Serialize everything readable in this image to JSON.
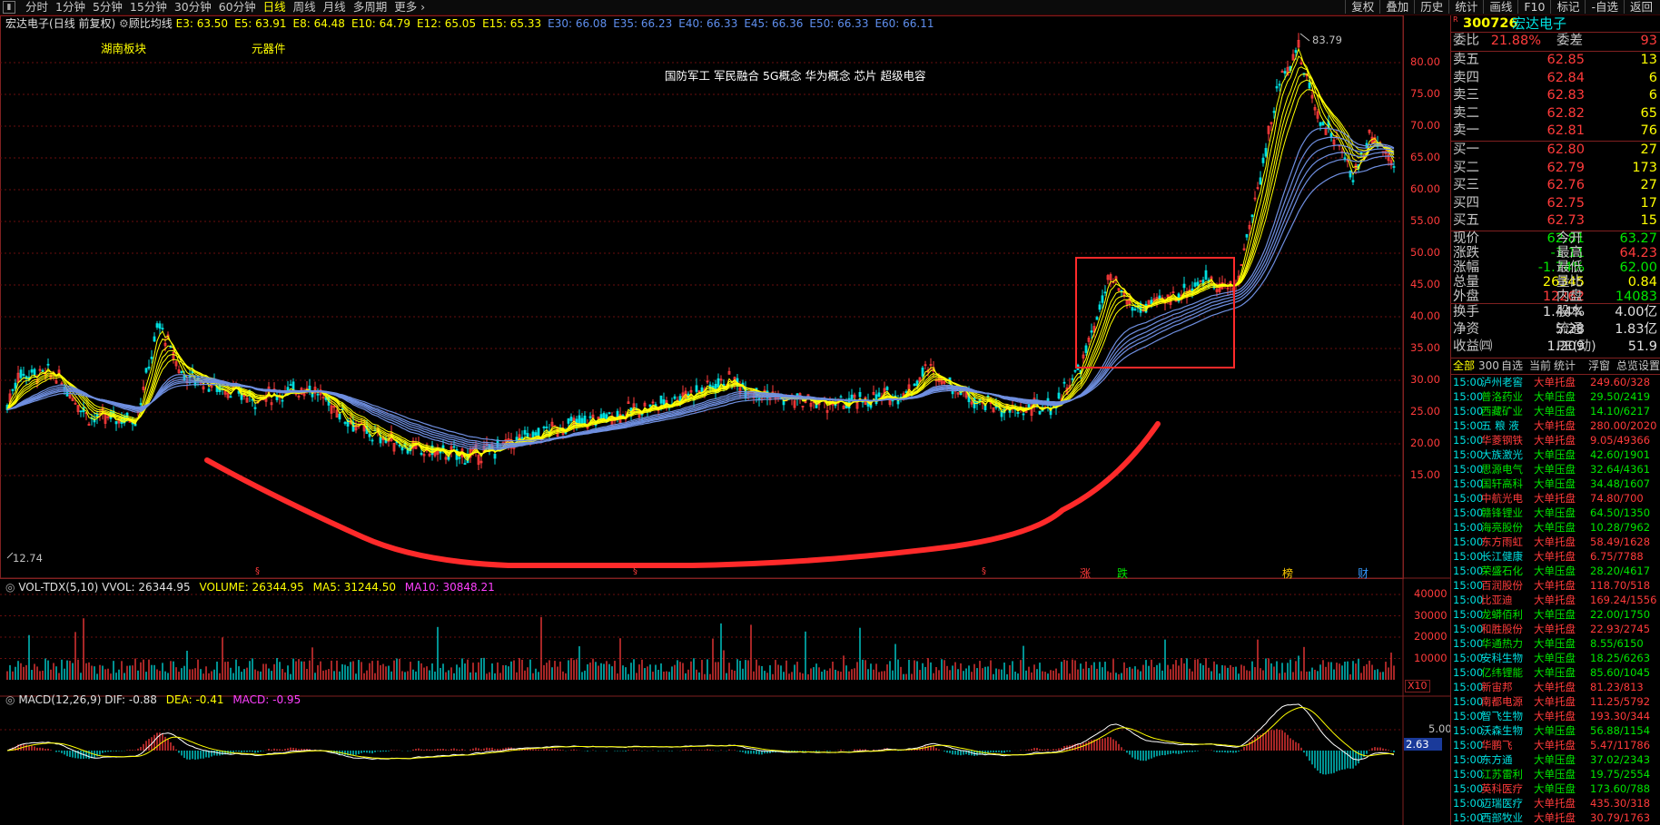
{
  "toolbar": {
    "periods": [
      "分时",
      "1分钟",
      "5分钟",
      "15分钟",
      "30分钟",
      "60分钟",
      "日线",
      "周线",
      "月线",
      "多周期",
      "更多"
    ],
    "active_period": "日线",
    "right_buttons": [
      "复权",
      "叠加",
      "历史",
      "统计",
      "画线",
      "F10",
      "标记",
      "-自选",
      "返回"
    ]
  },
  "chart_header": {
    "stock": "宏达电子",
    "mode": "(日线 前复权)",
    "indicator": "顾比均线",
    "ma_values": [
      "E3: 63.50",
      "E5: 63.91",
      "E8: 64.48",
      "E10: 64.79",
      "E12: 65.05",
      "E15: 65.33",
      "E30: 66.08",
      "E35: 66.23",
      "E40: 66.33",
      "E45: 66.36",
      "E50: 66.33",
      "E60: 66.11"
    ]
  },
  "tags": {
    "sector1": "湖南板块",
    "sector2": "元器件",
    "concepts": "国防军工 军民融合 5G概念 华为概念 芯片 超级电容"
  },
  "price_axis": [
    "80.00",
    "75.00",
    "70.00",
    "65.00",
    "60.00",
    "55.00",
    "50.00",
    "45.00",
    "40.00",
    "35.00",
    "30.00",
    "25.00",
    "20.00",
    "15.00"
  ],
  "labels": {
    "high": "83.79",
    "low": "12.74"
  },
  "markers": [
    {
      "label": "涨",
      "color": "#ff3b3b"
    },
    {
      "label": "跌",
      "color": "#00e600"
    },
    {
      "label": "榜",
      "color": "#ffcc00"
    },
    {
      "label": "财",
      "color": "#3399ff"
    }
  ],
  "volume_header": {
    "name": "VOL-TDX(5,10)",
    "vvol": "VVOL: 26344.95",
    "volume": "VOLUME: 26344.95",
    "ma5": "MA5: 31244.50",
    "ma10": "MA10: 30848.21"
  },
  "volume_axis": [
    "40000",
    "30000",
    "20000",
    "10000"
  ],
  "volume_unit": "X10",
  "macd_header": {
    "name": "MACD(12,26,9)",
    "dif": "DIF: -0.88",
    "dea": "DEA: -0.41",
    "macd": "MACD: -0.95"
  },
  "macd_axis": {
    "top": "5.00",
    "current": "2.63"
  },
  "quote": {
    "code": "300726",
    "name": "宏达电子",
    "weibi_label": "委比",
    "weibi": "21.88%",
    "weicha_label": "委差",
    "weicha": "93",
    "asks": [
      {
        "label": "卖五",
        "price": "62.85",
        "vol": "13"
      },
      {
        "label": "卖四",
        "price": "62.84",
        "vol": "6"
      },
      {
        "label": "卖三",
        "price": "62.83",
        "vol": "6"
      },
      {
        "label": "卖二",
        "price": "62.82",
        "vol": "65"
      },
      {
        "label": "卖一",
        "price": "62.81",
        "vol": "76"
      }
    ],
    "bids": [
      {
        "label": "买一",
        "price": "62.80",
        "vol": "27"
      },
      {
        "label": "买二",
        "price": "62.79",
        "vol": "173"
      },
      {
        "label": "买三",
        "price": "62.76",
        "vol": "27"
      },
      {
        "label": "买四",
        "price": "62.75",
        "vol": "17"
      },
      {
        "label": "买五",
        "price": "62.73",
        "vol": "15"
      }
    ],
    "stats": [
      {
        "l1": "现价",
        "v1": "62.81",
        "c1": "green",
        "l2": "今开",
        "v2": "63.27",
        "c2": "green"
      },
      {
        "l1": "涨跌",
        "v1": "-1.11",
        "c1": "green",
        "l2": "最高",
        "v2": "64.23",
        "c2": "red"
      },
      {
        "l1": "涨幅",
        "v1": "-1.74%",
        "c1": "green",
        "l2": "最低",
        "v2": "62.00",
        "c2": "green"
      },
      {
        "l1": "总量",
        "v1": "26345",
        "c1": "yellow",
        "l2": "量比",
        "v2": "0.84",
        "c2": "yellow"
      },
      {
        "l1": "外盘",
        "v1": "12262",
        "c1": "red",
        "l2": "内盘",
        "v2": "14083",
        "c2": "green"
      }
    ],
    "stats2": [
      {
        "l1": "换手",
        "v1": "1.44%",
        "l2": "股本",
        "v2": "4.00亿"
      },
      {
        "l1": "净资",
        "v1": "5.28",
        "l2": "流通",
        "v2": "1.83亿"
      },
      {
        "l1": "收益㈣",
        "v1": "1.209",
        "l2": "PE(动)",
        "v2": "51.9"
      }
    ]
  },
  "list_tabs": [
    "全部",
    "300",
    "自选",
    "当前",
    "统计",
    "浮窗",
    "总览",
    "设置"
  ],
  "trades": [
    {
      "t": "15:00",
      "n": "泸州老窖",
      "k": "大单托盘",
      "v": "249.60/328",
      "nc": "#00e0e0",
      "kc": "#ff3b3b",
      "vc": "#ff3b3b"
    },
    {
      "t": "15:00",
      "n": "普洛药业",
      "k": "大单压盘",
      "v": "29.50/2419",
      "nc": "#00e600",
      "kc": "#00e600",
      "vc": "#00e600"
    },
    {
      "t": "15:00",
      "n": "西藏矿业",
      "k": "大单压盘",
      "v": "14.10/6217",
      "nc": "#00e600",
      "kc": "#00e600",
      "vc": "#00e600"
    },
    {
      "t": "15:00",
      "n": "五 粮 液",
      "k": "大单托盘",
      "v": "280.00/2020",
      "nc": "#00e0e0",
      "kc": "#ff3b3b",
      "vc": "#ff3b3b"
    },
    {
      "t": "15:00",
      "n": "华菱钢铁",
      "k": "大单托盘",
      "v": "9.05/49366",
      "nc": "#ff3b3b",
      "kc": "#ff3b3b",
      "vc": "#ff3b3b"
    },
    {
      "t": "15:00",
      "n": "大族激光",
      "k": "大单压盘",
      "v": "42.60/1901",
      "nc": "#00e0e0",
      "kc": "#00e600",
      "vc": "#00e600"
    },
    {
      "t": "15:00",
      "n": "思源电气",
      "k": "大单压盘",
      "v": "32.64/4361",
      "nc": "#00e600",
      "kc": "#00e600",
      "vc": "#00e600"
    },
    {
      "t": "15:00",
      "n": "国轩高科",
      "k": "大单压盘",
      "v": "34.48/1607",
      "nc": "#00e600",
      "kc": "#00e600",
      "vc": "#00e600"
    },
    {
      "t": "15:00",
      "n": "中航光电",
      "k": "大单托盘",
      "v": "74.80/700",
      "nc": "#ff3b3b",
      "kc": "#ff3b3b",
      "vc": "#ff3b3b"
    },
    {
      "t": "15:00",
      "n": "赣锋锂业",
      "k": "大单压盘",
      "v": "64.50/1350",
      "nc": "#00e600",
      "kc": "#00e600",
      "vc": "#00e600"
    },
    {
      "t": "15:00",
      "n": "海亮股份",
      "k": "大单压盘",
      "v": "10.28/7962",
      "nc": "#00e600",
      "kc": "#00e600",
      "vc": "#00e600"
    },
    {
      "t": "15:00",
      "n": "东方雨虹",
      "k": "大单托盘",
      "v": "58.49/1628",
      "nc": "#ff3b3b",
      "kc": "#ff3b3b",
      "vc": "#ff3b3b"
    },
    {
      "t": "15:00",
      "n": "长江健康",
      "k": "大单托盘",
      "v": "6.75/7788",
      "nc": "#00e0e0",
      "kc": "#ff3b3b",
      "vc": "#ff3b3b"
    },
    {
      "t": "15:00",
      "n": "荣盛石化",
      "k": "大单压盘",
      "v": "28.20/4617",
      "nc": "#00e600",
      "kc": "#00e600",
      "vc": "#00e600"
    },
    {
      "t": "15:00",
      "n": "百润股份",
      "k": "大单托盘",
      "v": "118.70/518",
      "nc": "#ff3b3b",
      "kc": "#ff3b3b",
      "vc": "#ff3b3b"
    },
    {
      "t": "15:00",
      "n": "比亚迪",
      "k": "大单托盘",
      "v": "169.24/1556",
      "nc": "#ff3b3b",
      "kc": "#ff3b3b",
      "vc": "#ff3b3b"
    },
    {
      "t": "15:00",
      "n": "龙蟒佰利",
      "k": "大单压盘",
      "v": "22.00/1750",
      "nc": "#00e600",
      "kc": "#00e600",
      "vc": "#00e600"
    },
    {
      "t": "15:00",
      "n": "和胜股份",
      "k": "大单托盘",
      "v": "22.93/2745",
      "nc": "#ff3b3b",
      "kc": "#ff3b3b",
      "vc": "#ff3b3b"
    },
    {
      "t": "15:00",
      "n": "华通热力",
      "k": "大单压盘",
      "v": "8.55/6150",
      "nc": "#00e600",
      "kc": "#00e600",
      "vc": "#00e600"
    },
    {
      "t": "15:00",
      "n": "安科生物",
      "k": "大单压盘",
      "v": "18.25/6263",
      "nc": "#00e0e0",
      "kc": "#00e600",
      "vc": "#00e600"
    },
    {
      "t": "15:00",
      "n": "亿纬锂能",
      "k": "大单压盘",
      "v": "85.60/1045",
      "nc": "#00e600",
      "kc": "#00e600",
      "vc": "#00e600"
    },
    {
      "t": "15:00",
      "n": "新宙邦",
      "k": "大单托盘",
      "v": "81.23/813",
      "nc": "#ff3b3b",
      "kc": "#ff3b3b",
      "vc": "#ff3b3b"
    },
    {
      "t": "15:00",
      "n": "南都电源",
      "k": "大单托盘",
      "v": "11.25/5792",
      "nc": "#ff3b3b",
      "kc": "#ff3b3b",
      "vc": "#ff3b3b"
    },
    {
      "t": "15:00",
      "n": "智飞生物",
      "k": "大单托盘",
      "v": "193.30/344",
      "nc": "#00e0e0",
      "kc": "#ff3b3b",
      "vc": "#ff3b3b"
    },
    {
      "t": "15:00",
      "n": "沃森生物",
      "k": "大单压盘",
      "v": "56.88/1154",
      "nc": "#00e0e0",
      "kc": "#00e600",
      "vc": "#00e600"
    },
    {
      "t": "15:00",
      "n": "华鹏飞",
      "k": "大单托盘",
      "v": "5.47/11786",
      "nc": "#ff3b3b",
      "kc": "#ff3b3b",
      "vc": "#ff3b3b"
    },
    {
      "t": "15:00",
      "n": "东方通",
      "k": "大单压盘",
      "v": "37.02/2343",
      "nc": "#00e0e0",
      "kc": "#00e600",
      "vc": "#00e600"
    },
    {
      "t": "15:00",
      "n": "江苏雷利",
      "k": "大单压盘",
      "v": "19.75/2554",
      "nc": "#00e600",
      "kc": "#00e600",
      "vc": "#00e600"
    },
    {
      "t": "15:00",
      "n": "英科医疗",
      "k": "大单压盘",
      "v": "173.60/788",
      "nc": "#ff3b3b",
      "kc": "#00e600",
      "vc": "#00e600"
    },
    {
      "t": "15:00",
      "n": "迈瑞医疗",
      "k": "大单托盘",
      "v": "435.30/318",
      "nc": "#00e0e0",
      "kc": "#ff3b3b",
      "vc": "#ff3b3b"
    },
    {
      "t": "15:00",
      "n": "西部牧业",
      "k": "大单托盘",
      "v": "30.79/1763",
      "nc": "#00e0e0",
      "kc": "#ff3b3b",
      "vc": "#ff3b3b"
    }
  ],
  "colors": {
    "up": "#ff3b3b",
    "down": "#00e0e0",
    "ma_fast": "#ffff00",
    "ma_slow": "#6f8fe0",
    "grid": "#7a1010",
    "frame": "#802020"
  }
}
